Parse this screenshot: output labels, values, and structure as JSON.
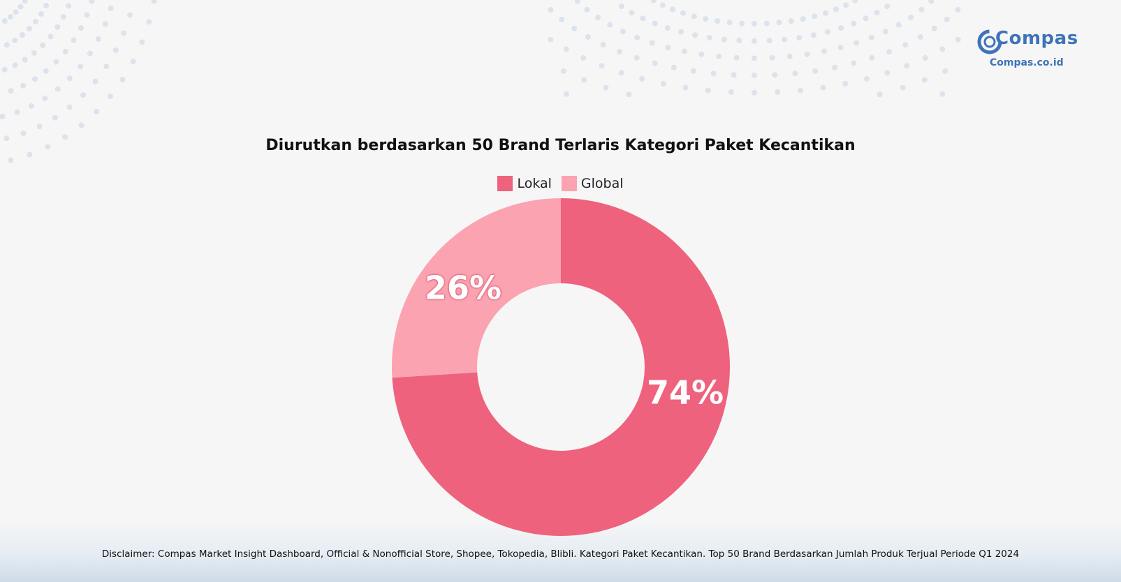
{
  "brand": {
    "name": "Compas",
    "domain": "Compas.co.id",
    "color": "#3f73b8"
  },
  "chart_data": {
    "type": "pie",
    "title": "Diurutkan berdasarkan 50 Brand Terlaris Kategori Paket Kecantikan",
    "donut": true,
    "legend_position": "top-center",
    "slices": [
      {
        "label": "Lokal",
        "value": 74,
        "display": "74%",
        "color": "#ee627d"
      },
      {
        "label": "Global",
        "value": 26,
        "display": "26%",
        "color": "#fba3b1"
      }
    ]
  },
  "disclaimer": "Disclaimer: Compas Market Insight Dashboard, Official & Nonofficial Store, Shopee, Tokopedia, Blibli. Kategori Paket Kecantikan. Top 50 Brand Berdasarkan Jumlah Produk Terjual Periode Q1 2024"
}
